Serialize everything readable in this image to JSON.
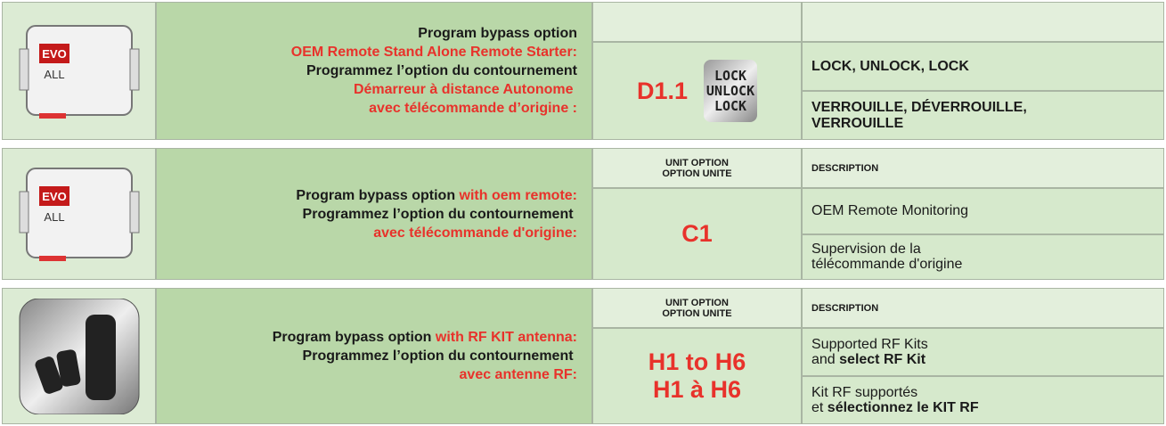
{
  "sections": [
    {
      "icon": {
        "type": "module",
        "labels": [
          "EVO",
          "ALL"
        ]
      },
      "instructions": [
        [
          {
            "text": "Program bypass option"
          }
        ],
        [
          {
            "text": "OEM Remote Stand Alone Remote Starter:",
            "color": "#e8322b"
          }
        ],
        [
          {
            "text": "Programmez l’option du contournement"
          }
        ],
        [
          {
            "text": "Démarreur à distance Autonome ",
            "color": "#e8322b"
          }
        ],
        [
          {
            "text": "avec télécommande d’origine :",
            "color": "#e8322b"
          }
        ]
      ],
      "option": [
        "D1.1"
      ],
      "badge": [
        "LOCK",
        "UNLOCK",
        "LOCK"
      ],
      "descriptions": [
        [
          [
            {
              "text": "LOCK, UNLOCK, LOCK",
              "bold": true
            }
          ]
        ],
        [
          [
            {
              "text": "VERROUILLE, DÉVERROUILLE,",
              "bold": true
            }
          ],
          [
            {
              "text": "VERROUILLE",
              "bold": true
            }
          ]
        ]
      ]
    },
    {
      "icon": {
        "type": "module",
        "labels": [
          "EVO",
          "ALL"
        ]
      },
      "header": {
        "option": [
          "UNIT OPTION",
          "OPTION UNITE"
        ],
        "description": "DESCRIPTION"
      },
      "instructions": [
        [
          {
            "text": "Program bypass option "
          },
          {
            "text": "with oem remote:",
            "color": "#e8322b"
          }
        ],
        [
          {
            "text": "Programmez l’option du contournement "
          }
        ],
        [
          {
            "text": "avec télécommande d'origine:",
            "color": "#e8322b"
          }
        ]
      ],
      "option": [
        "C1"
      ],
      "descriptions": [
        [
          [
            {
              "text": "OEM Remote Monitoring"
            }
          ]
        ],
        [
          [
            {
              "text": "Supervision de la"
            }
          ],
          [
            {
              "text": "télécommande d'origine"
            }
          ]
        ]
      ]
    },
    {
      "icon": {
        "type": "remote"
      },
      "header": {
        "option": [
          "UNIT OPTION",
          "OPTION UNITE"
        ],
        "description": "DESCRIPTION"
      },
      "instructions": [
        [
          {
            "text": "Program bypass option "
          },
          {
            "text": "with RF KIT antenna:",
            "color": "#e8322b"
          }
        ],
        [
          {
            "text": "Programmez l’option du contournement "
          }
        ],
        [
          {
            "text": "avec antenne RF:",
            "color": "#e8322b"
          }
        ]
      ],
      "option": [
        "H1 to H6",
        "H1 à  H6"
      ],
      "descriptions": [
        [
          [
            {
              "text": "Supported RF Kits"
            }
          ],
          [
            {
              "text": "and "
            },
            {
              "text": "select RF Kit",
              "bold": true
            }
          ]
        ],
        [
          [
            {
              "text": "Kit RF supportés"
            }
          ],
          [
            {
              "text": "et "
            },
            {
              "text": "sélectionnez le KIT RF",
              "bold": true
            }
          ]
        ]
      ]
    }
  ]
}
